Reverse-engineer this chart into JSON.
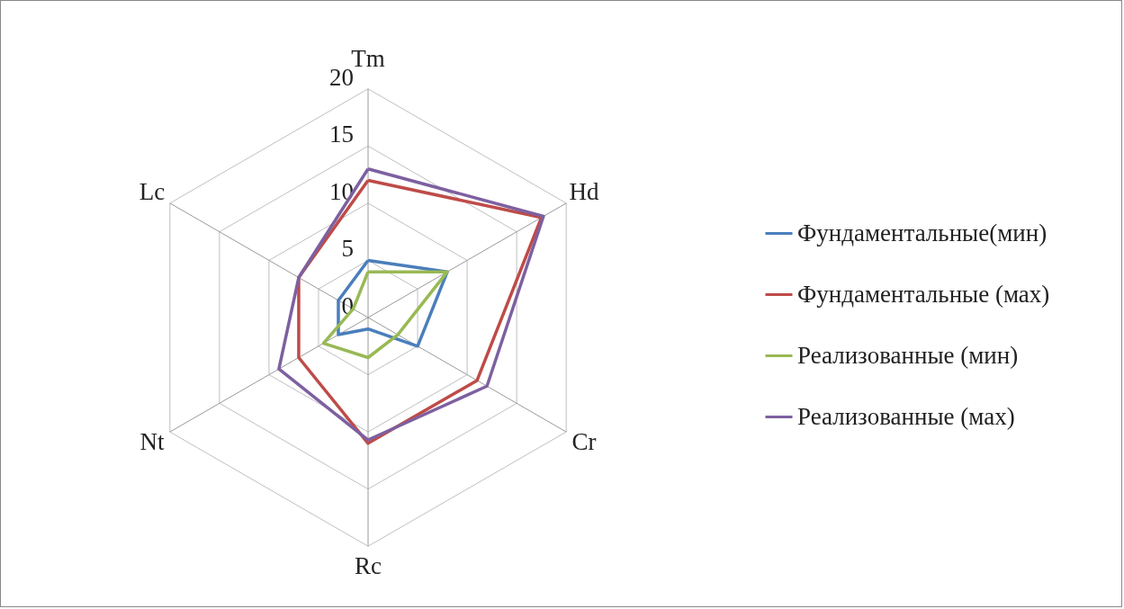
{
  "chart_data": {
    "type": "radar",
    "categories": [
      "Tm",
      "Hd",
      "Cr",
      "Rc",
      "Nt",
      "Lc"
    ],
    "ylim": [
      0,
      20
    ],
    "yticks": [
      0,
      5,
      10,
      15,
      20
    ],
    "grid": true,
    "legend": "right",
    "marker": "none",
    "series": [
      {
        "name": "Фундаментальные(мин)",
        "color": "#4a7ebb",
        "values": [
          5,
          8,
          5,
          1,
          3,
          3
        ]
      },
      {
        "name": "Фундаментальные (мах)",
        "color": "#be4b48",
        "values": [
          12,
          17.5,
          11,
          11,
          7,
          7
        ]
      },
      {
        "name": "Реализованные (мин)",
        "color": "#98b954",
        "values": [
          4,
          8,
          3,
          3.5,
          4.5,
          1.5
        ]
      },
      {
        "name": "Реализованные (мах)",
        "color": "#7d60a0",
        "values": [
          13,
          17.7,
          12,
          10.7,
          9,
          7
        ]
      }
    ]
  }
}
